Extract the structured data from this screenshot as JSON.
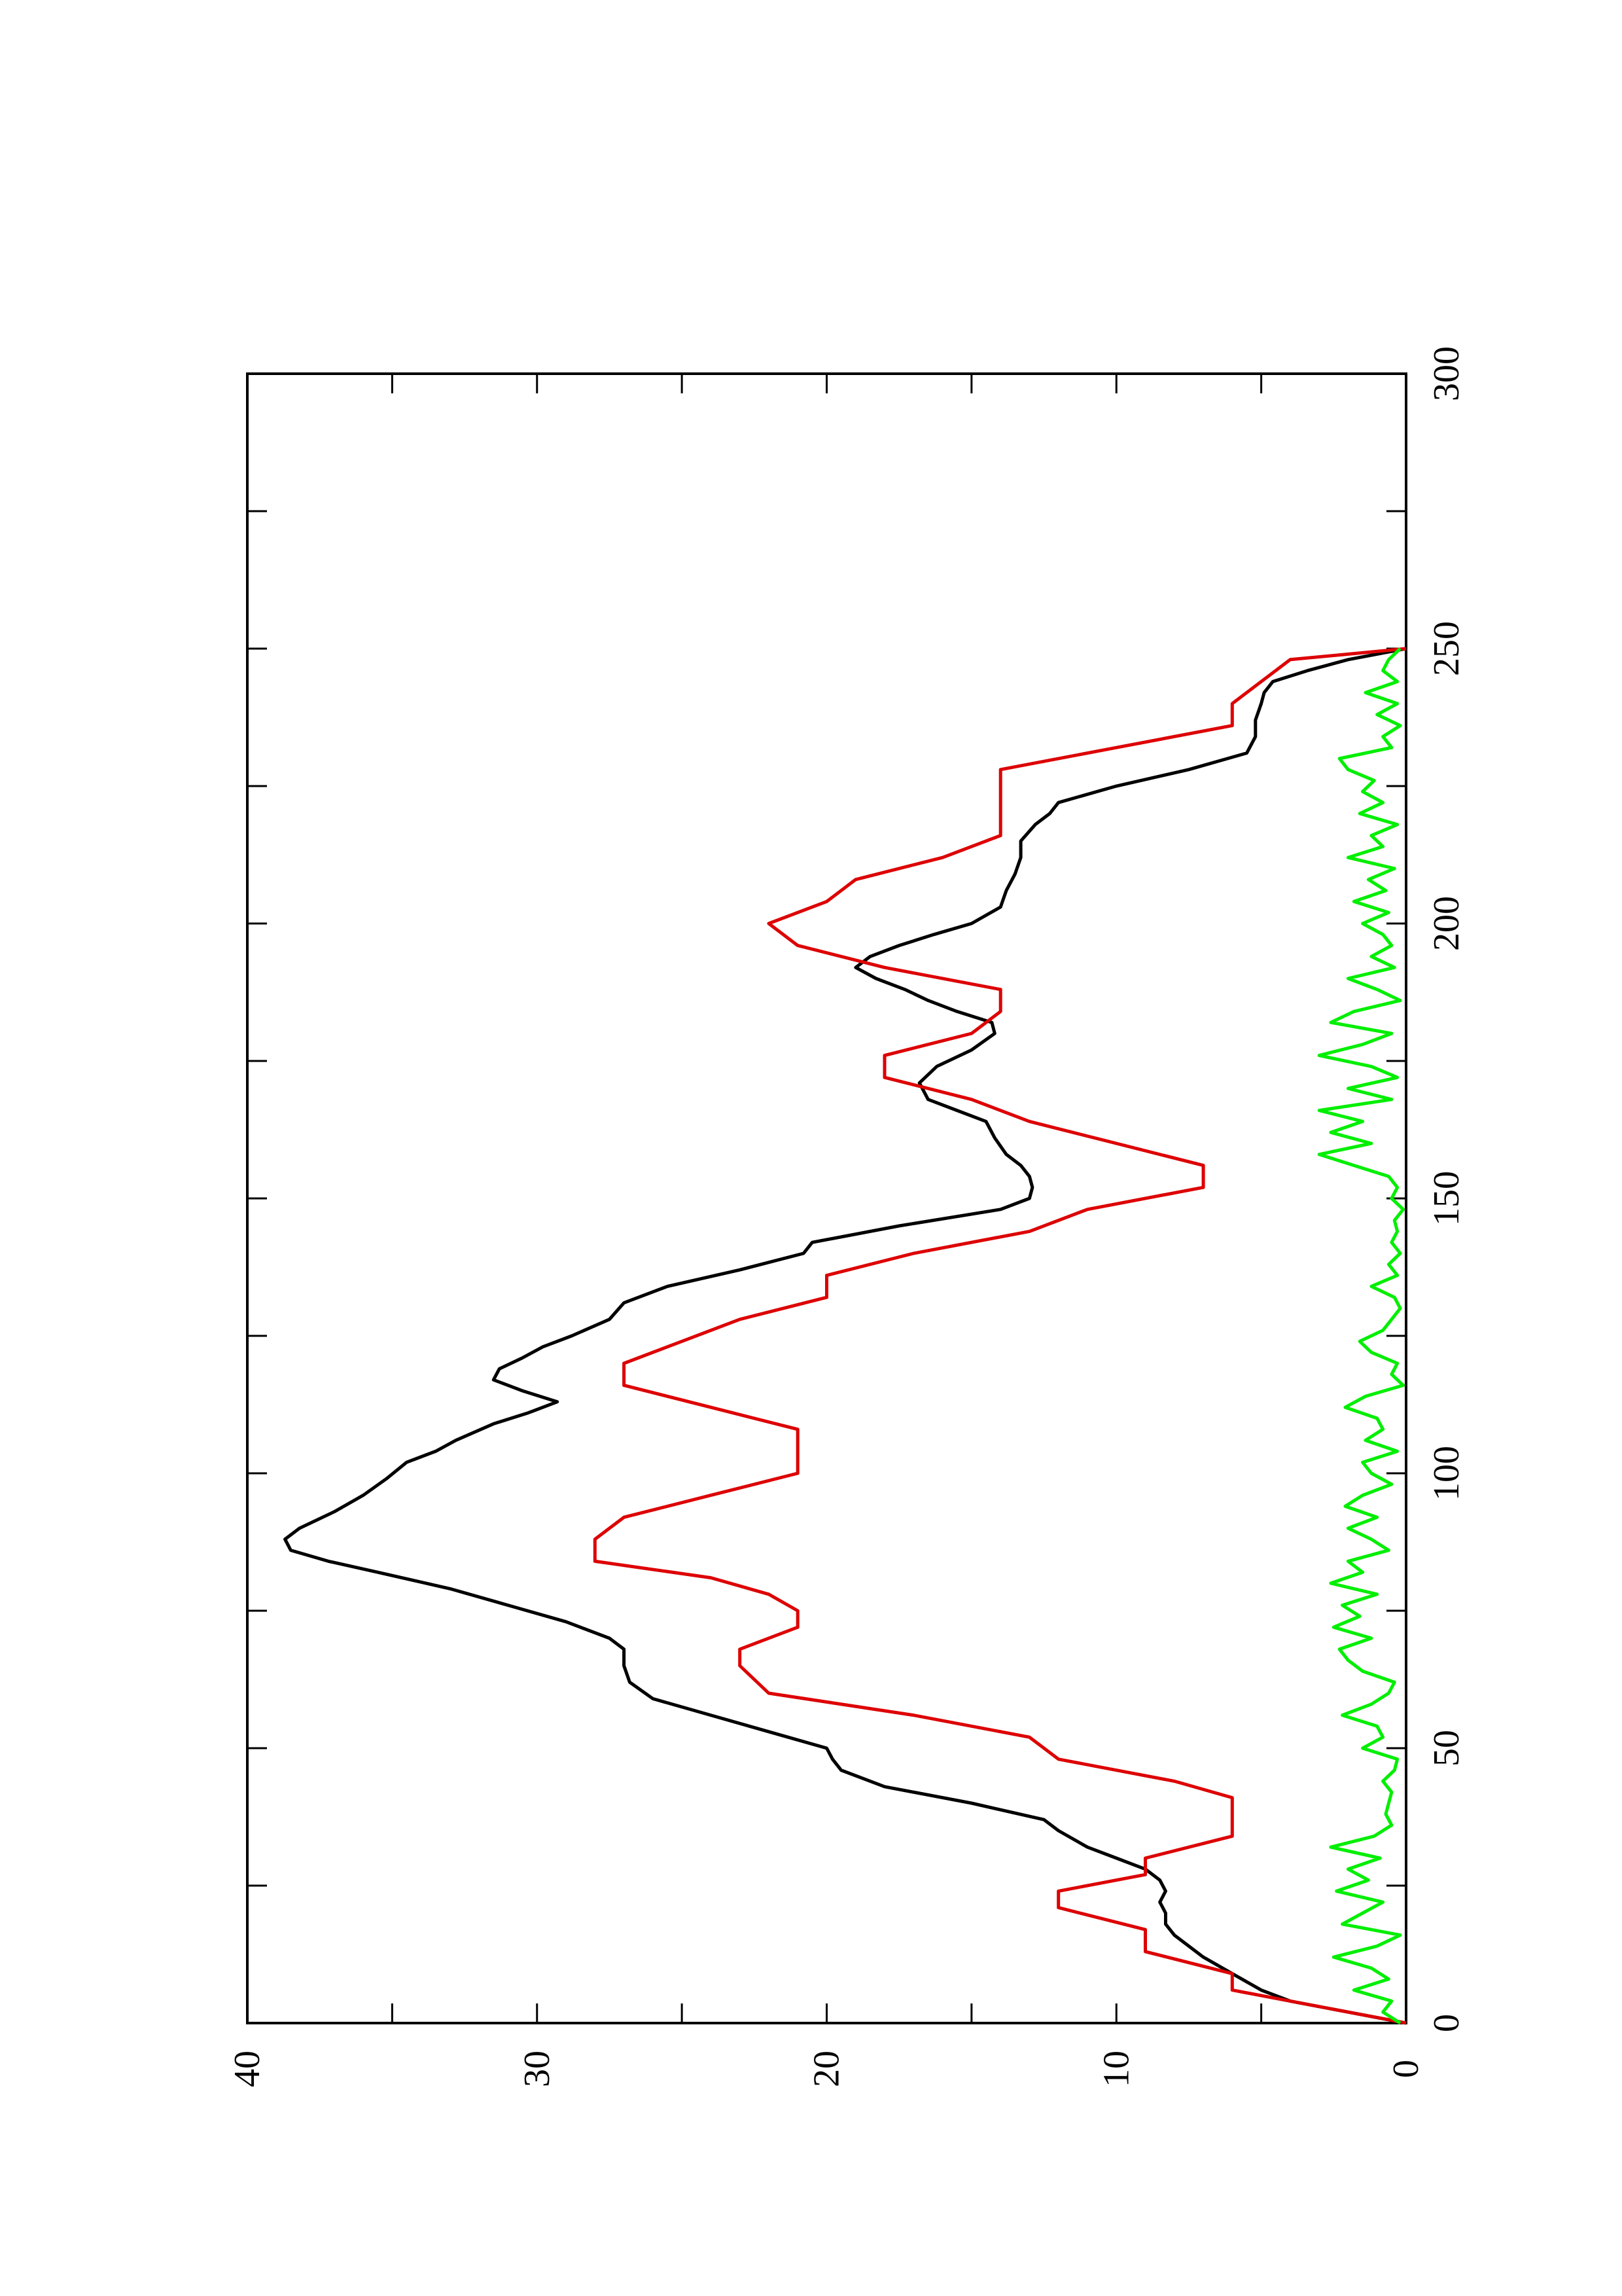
{
  "chart_data": {
    "type": "line",
    "orientation": "rotated-90-ccw",
    "title": "",
    "xlabel": "",
    "ylabel": "",
    "xlim": [
      0,
      300
    ],
    "ylim": [
      0,
      40
    ],
    "x_ticks": [
      "0",
      "50",
      "100",
      "150",
      "200",
      "250",
      "300"
    ],
    "y_ticks": [
      "0",
      "10",
      "20",
      "30",
      "40"
    ],
    "grid": false,
    "legend": "none",
    "series": [
      {
        "color": "#000000",
        "x": [
          0,
          2,
          4,
          6,
          9,
          12,
          14,
          16,
          18,
          20,
          22,
          24,
          26,
          28,
          30,
          32,
          35,
          37,
          40,
          43,
          46,
          48,
          50,
          53,
          56,
          59,
          62,
          65,
          68,
          70,
          73,
          76,
          79,
          82,
          84,
          86,
          88,
          90,
          93,
          96,
          99,
          102,
          104,
          106,
          109,
          111,
          113,
          115,
          117,
          119,
          121,
          123,
          125,
          128,
          131,
          134,
          137,
          140,
          142,
          145,
          148,
          150,
          152,
          154,
          156,
          158,
          161,
          164,
          166,
          168,
          171,
          174,
          177,
          180,
          182,
          184,
          186,
          188,
          190,
          192,
          194,
          196,
          198,
          200,
          203,
          206,
          209,
          212,
          215,
          218,
          220,
          222,
          225,
          228,
          231,
          234,
          237,
          240,
          242,
          244,
          246,
          248,
          250
        ],
        "values": [
          0,
          2,
          4,
          5,
          6,
          7,
          7.5,
          8,
          8.3,
          8.3,
          8.5,
          8.3,
          8.5,
          9,
          10,
          11,
          12,
          12.5,
          15,
          18,
          19.5,
          19.8,
          20,
          22,
          24,
          26,
          26.8,
          27,
          27,
          27.5,
          29,
          31,
          33,
          35.5,
          37.2,
          38.5,
          38.7,
          38.2,
          37,
          36,
          35.2,
          34.5,
          33.5,
          32.8,
          31.5,
          30.3,
          29.3,
          30.5,
          31.5,
          31.3,
          30.5,
          29.8,
          28.8,
          27.5,
          27,
          25.5,
          23,
          20.8,
          20.5,
          17.5,
          14,
          13,
          12.9,
          13,
          13.3,
          13.8,
          14.2,
          14.5,
          15.5,
          16.5,
          16.8,
          16.2,
          15,
          14.2,
          14.3,
          15.5,
          16.5,
          17.3,
          18.3,
          19,
          18.5,
          17.5,
          16.3,
          15,
          14,
          13.8,
          13.5,
          13.3,
          13.3,
          12.8,
          12.3,
          12,
          10,
          7.5,
          5.5,
          5.2,
          5.2,
          5,
          4.9,
          4.6,
          3.4,
          2,
          0
        ]
      },
      {
        "color": "#dd0000",
        "x": [
          0,
          3,
          6,
          9,
          13,
          17,
          21,
          24,
          27,
          30,
          34,
          38,
          41,
          44,
          48,
          52,
          56,
          60,
          65,
          68,
          72,
          75,
          78,
          81,
          84,
          88,
          92,
          96,
          100,
          104,
          108,
          112,
          116,
          120,
          124,
          128,
          132,
          136,
          140,
          144,
          148,
          152,
          156,
          160,
          164,
          168,
          172,
          176,
          180,
          184,
          188,
          192,
          196,
          200,
          204,
          208,
          212,
          216,
          220,
          224,
          228,
          232,
          236,
          240,
          244,
          248,
          250
        ],
        "values": [
          0,
          3,
          6,
          6,
          9,
          9,
          12,
          12,
          9,
          9,
          6,
          6,
          6,
          8,
          12,
          13,
          17,
          22,
          23,
          23,
          21,
          21,
          22,
          24,
          28,
          28,
          27,
          24,
          21,
          21,
          21,
          24,
          27,
          27,
          25,
          23,
          20,
          20,
          17,
          13,
          11,
          7,
          7,
          10,
          13,
          15,
          18,
          18,
          15,
          14,
          14,
          18,
          21,
          22,
          20,
          19,
          16,
          14,
          14,
          14,
          14,
          10,
          6,
          6,
          5,
          4,
          0
        ]
      },
      {
        "color": "#00ee00",
        "x": [
          0,
          2,
          4,
          6,
          8,
          10,
          12,
          14,
          16,
          18,
          20,
          22,
          24,
          26,
          28,
          30,
          32,
          34,
          36,
          38,
          40,
          42,
          44,
          46,
          48,
          50,
          52,
          54,
          56,
          58,
          60,
          62,
          64,
          66,
          68,
          70,
          72,
          74,
          76,
          78,
          80,
          82,
          84,
          86,
          88,
          90,
          92,
          94,
          96,
          98,
          100,
          102,
          104,
          106,
          108,
          110,
          112,
          114,
          116,
          118,
          120,
          122,
          124,
          126,
          128,
          130,
          132,
          134,
          136,
          138,
          140,
          142,
          144,
          146,
          148,
          150,
          152,
          154,
          156,
          158,
          160,
          162,
          164,
          166,
          168,
          170,
          172,
          174,
          176,
          178,
          180,
          182,
          184,
          186,
          188,
          190,
          192,
          194,
          196,
          198,
          200,
          202,
          204,
          206,
          208,
          210,
          212,
          214,
          216,
          218,
          220,
          222,
          224,
          226,
          228,
          230,
          232,
          234,
          236,
          238,
          240,
          242,
          244,
          246,
          248,
          250
        ],
        "values": [
          0.2,
          0.8,
          0.5,
          1.8,
          0.6,
          1.2,
          2.5,
          1.0,
          0.2,
          2.2,
          1.5,
          0.8,
          2.4,
          1.3,
          2.0,
          0.9,
          2.6,
          1.1,
          0.5,
          0.7,
          0.6,
          0.5,
          0.8,
          0.4,
          0.3,
          1.5,
          0.8,
          1.0,
          2.2,
          1.2,
          0.6,
          0.4,
          1.5,
          2.0,
          2.3,
          1.2,
          2.5,
          1.6,
          2.2,
          1.0,
          2.6,
          1.5,
          2.0,
          0.6,
          1.2,
          2.0,
          1.0,
          2.1,
          1.5,
          0.5,
          1.2,
          1.5,
          0.3,
          1.4,
          0.8,
          1.0,
          2.1,
          1.4,
          0.1,
          0.5,
          0.3,
          1.2,
          1.6,
          0.8,
          0.5,
          0.2,
          0.4,
          1.2,
          0.3,
          0.6,
          0.2,
          0.5,
          0.3,
          0.4,
          0.1,
          0.5,
          0.3,
          0.6,
          1.8,
          3.0,
          1.2,
          2.6,
          1.5,
          3.0,
          0.5,
          2.0,
          0.3,
          1.2,
          3.0,
          1.5,
          0.5,
          2.6,
          1.8,
          0.2,
          1.0,
          2.0,
          0.4,
          1.2,
          0.5,
          0.8,
          1.5,
          0.6,
          1.8,
          0.7,
          1.3,
          0.4,
          2.0,
          0.8,
          1.2,
          0.3,
          1.6,
          0.8,
          1.5,
          1.1,
          2.0,
          2.3,
          0.5,
          0.8,
          0.2,
          1.0,
          0.3,
          1.4,
          0.3,
          0.8,
          0.6,
          0.2
        ]
      }
    ]
  }
}
